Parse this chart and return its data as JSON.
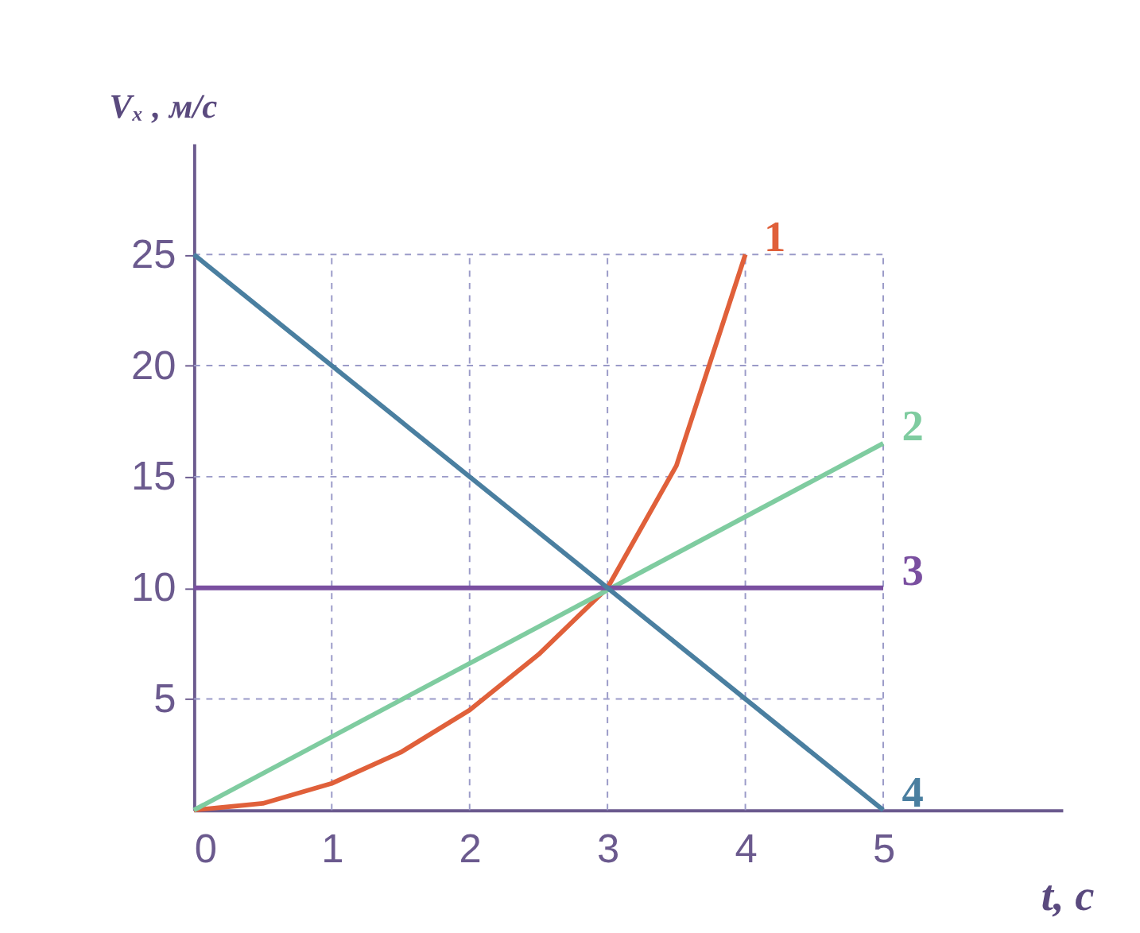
{
  "chart_data": {
    "type": "line",
    "xlabel": "t, с",
    "ylabel": "Vₓ , м/с",
    "xlim": [
      0,
      6.3
    ],
    "ylim": [
      0,
      30
    ],
    "xticks": [
      0,
      1,
      2,
      3,
      4,
      5
    ],
    "yticks": [
      5,
      10,
      15,
      20,
      25
    ],
    "grid": true,
    "line_style": "solid",
    "marker": "none",
    "series": [
      {
        "name": "1",
        "color": "#e0603a",
        "x": [
          0,
          0.5,
          1,
          1.5,
          2,
          2.5,
          3,
          3.5,
          4
        ],
        "values": [
          0,
          0.3,
          1.2,
          2.6,
          4.5,
          7,
          10,
          15.5,
          25
        ]
      },
      {
        "name": "2",
        "color": "#7fcca0",
        "x": [
          0,
          5
        ],
        "values": [
          0,
          16.5
        ]
      },
      {
        "name": "3",
        "color": "#7a4fa0",
        "x": [
          0,
          5
        ],
        "values": [
          10,
          10
        ]
      },
      {
        "name": "4",
        "color": "#4a7fa0",
        "x": [
          0,
          5
        ],
        "values": [
          25,
          0
        ]
      }
    ]
  }
}
